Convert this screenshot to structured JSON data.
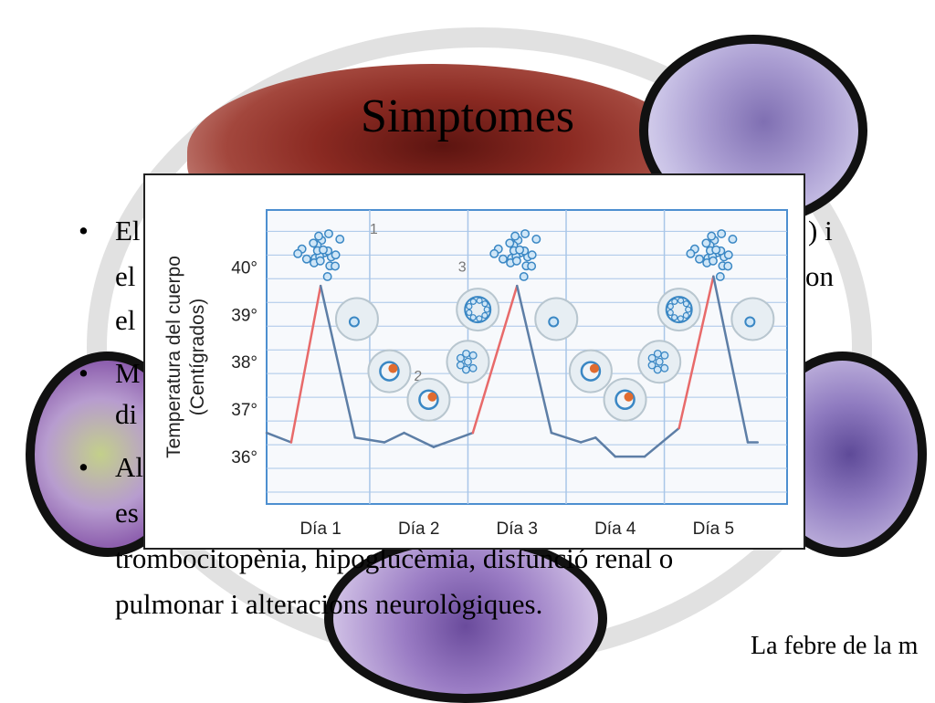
{
  "slide": {
    "title": "Simptomes",
    "bullets": [
      {
        "lines": [
          {
            "text": "El",
            "right": ") i"
          },
          {
            "text": "el",
            "right": "on"
          },
          {
            "text": "el"
          }
        ]
      },
      {
        "lines": [
          {
            "text": "M"
          },
          {
            "text": "di"
          }
        ]
      },
      {
        "lines": [
          {
            "text": "Al"
          },
          {
            "text": "es"
          },
          {
            "text": "trombocitopènia, hipoglucèmia, disfunció renal o"
          },
          {
            "text": "pulmonar i alteracions neurològiques."
          }
        ]
      }
    ],
    "source": "La febre de la m"
  },
  "chart_data": {
    "type": "line",
    "ylabel_line1": "Temperatura del cuerpo",
    "ylabel_line2": "(Centígrados)",
    "y_ticks": [
      "40°",
      "39°",
      "38°",
      "37°",
      "36°"
    ],
    "y_tick_values": [
      40,
      39,
      38,
      37,
      36
    ],
    "ylim": [
      35.0,
      41.2
    ],
    "xlim": [
      0,
      5.3
    ],
    "categories": [
      "Día 1",
      "Día 2",
      "Día 3",
      "Día 4",
      "Día 5"
    ],
    "grid": true,
    "annotations": [
      "1",
      "2",
      "3"
    ],
    "series": [
      {
        "values": [
          [
            0.0,
            36.5
          ],
          [
            0.25,
            36.3
          ],
          [
            0.55,
            39.6
          ],
          [
            0.9,
            36.4
          ],
          [
            1.2,
            36.3
          ],
          [
            1.4,
            36.5
          ],
          [
            1.7,
            36.2
          ],
          [
            2.1,
            36.5
          ],
          [
            2.55,
            39.6
          ],
          [
            2.9,
            36.5
          ],
          [
            3.2,
            36.3
          ],
          [
            3.35,
            36.4
          ],
          [
            3.55,
            36.0
          ],
          [
            3.85,
            36.0
          ],
          [
            4.2,
            36.6
          ],
          [
            4.55,
            39.8
          ],
          [
            4.9,
            36.3
          ],
          [
            5.0,
            36.3
          ]
        ]
      }
    ],
    "colors": {
      "rise": "#e86a6a",
      "fall": "#5d7ea6",
      "grid": "#a9c6e8",
      "bg": "#f7f9fc"
    }
  }
}
